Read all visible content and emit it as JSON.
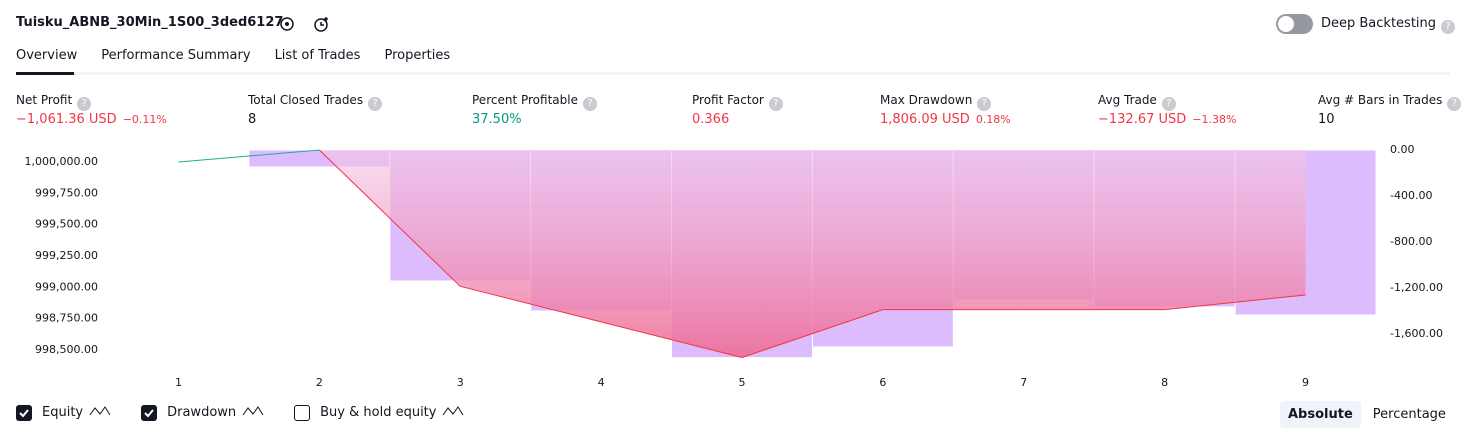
{
  "header": {
    "title": "Tuisku_ABNB_30Min_1S00_3ded6127",
    "toggle_label": "Deep Backtesting"
  },
  "tabs": [
    "Overview",
    "Performance Summary",
    "List of Trades",
    "Properties"
  ],
  "metrics": [
    {
      "label": "Net Profit",
      "value": "−1,061.36 USD",
      "sub": "−0.11%",
      "color": "#f23645"
    },
    {
      "label": "Total Closed Trades",
      "value": "8",
      "color": "#131722"
    },
    {
      "label": "Percent Profitable",
      "value": "37.50%",
      "color": "#089981"
    },
    {
      "label": "Profit Factor",
      "value": "0.366",
      "color": "#f23645"
    },
    {
      "label": "Max Drawdown",
      "value": "1,806.09 USD",
      "sub": "0.18%",
      "color": "#f23645"
    },
    {
      "label": "Avg Trade",
      "value": "−132.67 USD",
      "sub": "−1.38%",
      "color": "#f23645"
    },
    {
      "label": "Avg # Bars in Trades",
      "value": "10",
      "color": "#131722"
    }
  ],
  "chart_data": {
    "type": "combo",
    "categories": [
      "1",
      "2",
      "3",
      "4",
      "5",
      "6",
      "7",
      "8",
      "9"
    ],
    "series": [
      {
        "name": "Equity",
        "color": "#22ab94",
        "down_color": "#f23645",
        "values": [
          1000000,
          1000096,
          999008,
          998724,
          998440,
          998822,
          998822,
          998822,
          998939
        ]
      },
      {
        "name": "Drawdown",
        "color": "#dcbcfc",
        "axis": "y2",
        "values": [
          0,
          -148,
          -1139,
          -1400,
          -1806,
          -1713,
          -1304,
          -1365,
          -1435
        ]
      }
    ],
    "hidden_series": [
      "Buy & hold equity"
    ],
    "ylim": [
      998380,
      1000096
    ],
    "yticks": [
      {
        "value": 1000000,
        "label": "1,000,000.00"
      },
      {
        "value": 999750,
        "label": "999,750.00"
      },
      {
        "value": 999500,
        "label": "999,500.00"
      },
      {
        "value": 999250,
        "label": "999,250.00"
      },
      {
        "value": 999000,
        "label": "999,000.00"
      },
      {
        "value": 998750,
        "label": "998,750.00"
      },
      {
        "value": 998500,
        "label": "998,500.00"
      }
    ],
    "y2lim": [
      -1870,
      0
    ],
    "y2ticks": [
      {
        "value": 0,
        "label": "0.00"
      },
      {
        "value": -400,
        "label": "-400.00"
      },
      {
        "value": -800,
        "label": "-800.00"
      },
      {
        "value": -1200,
        "label": "-1,200.00"
      },
      {
        "value": -1600,
        "label": "-1,600.00"
      }
    ]
  },
  "scale_buttons": [
    "Absolute",
    "Percentage"
  ]
}
